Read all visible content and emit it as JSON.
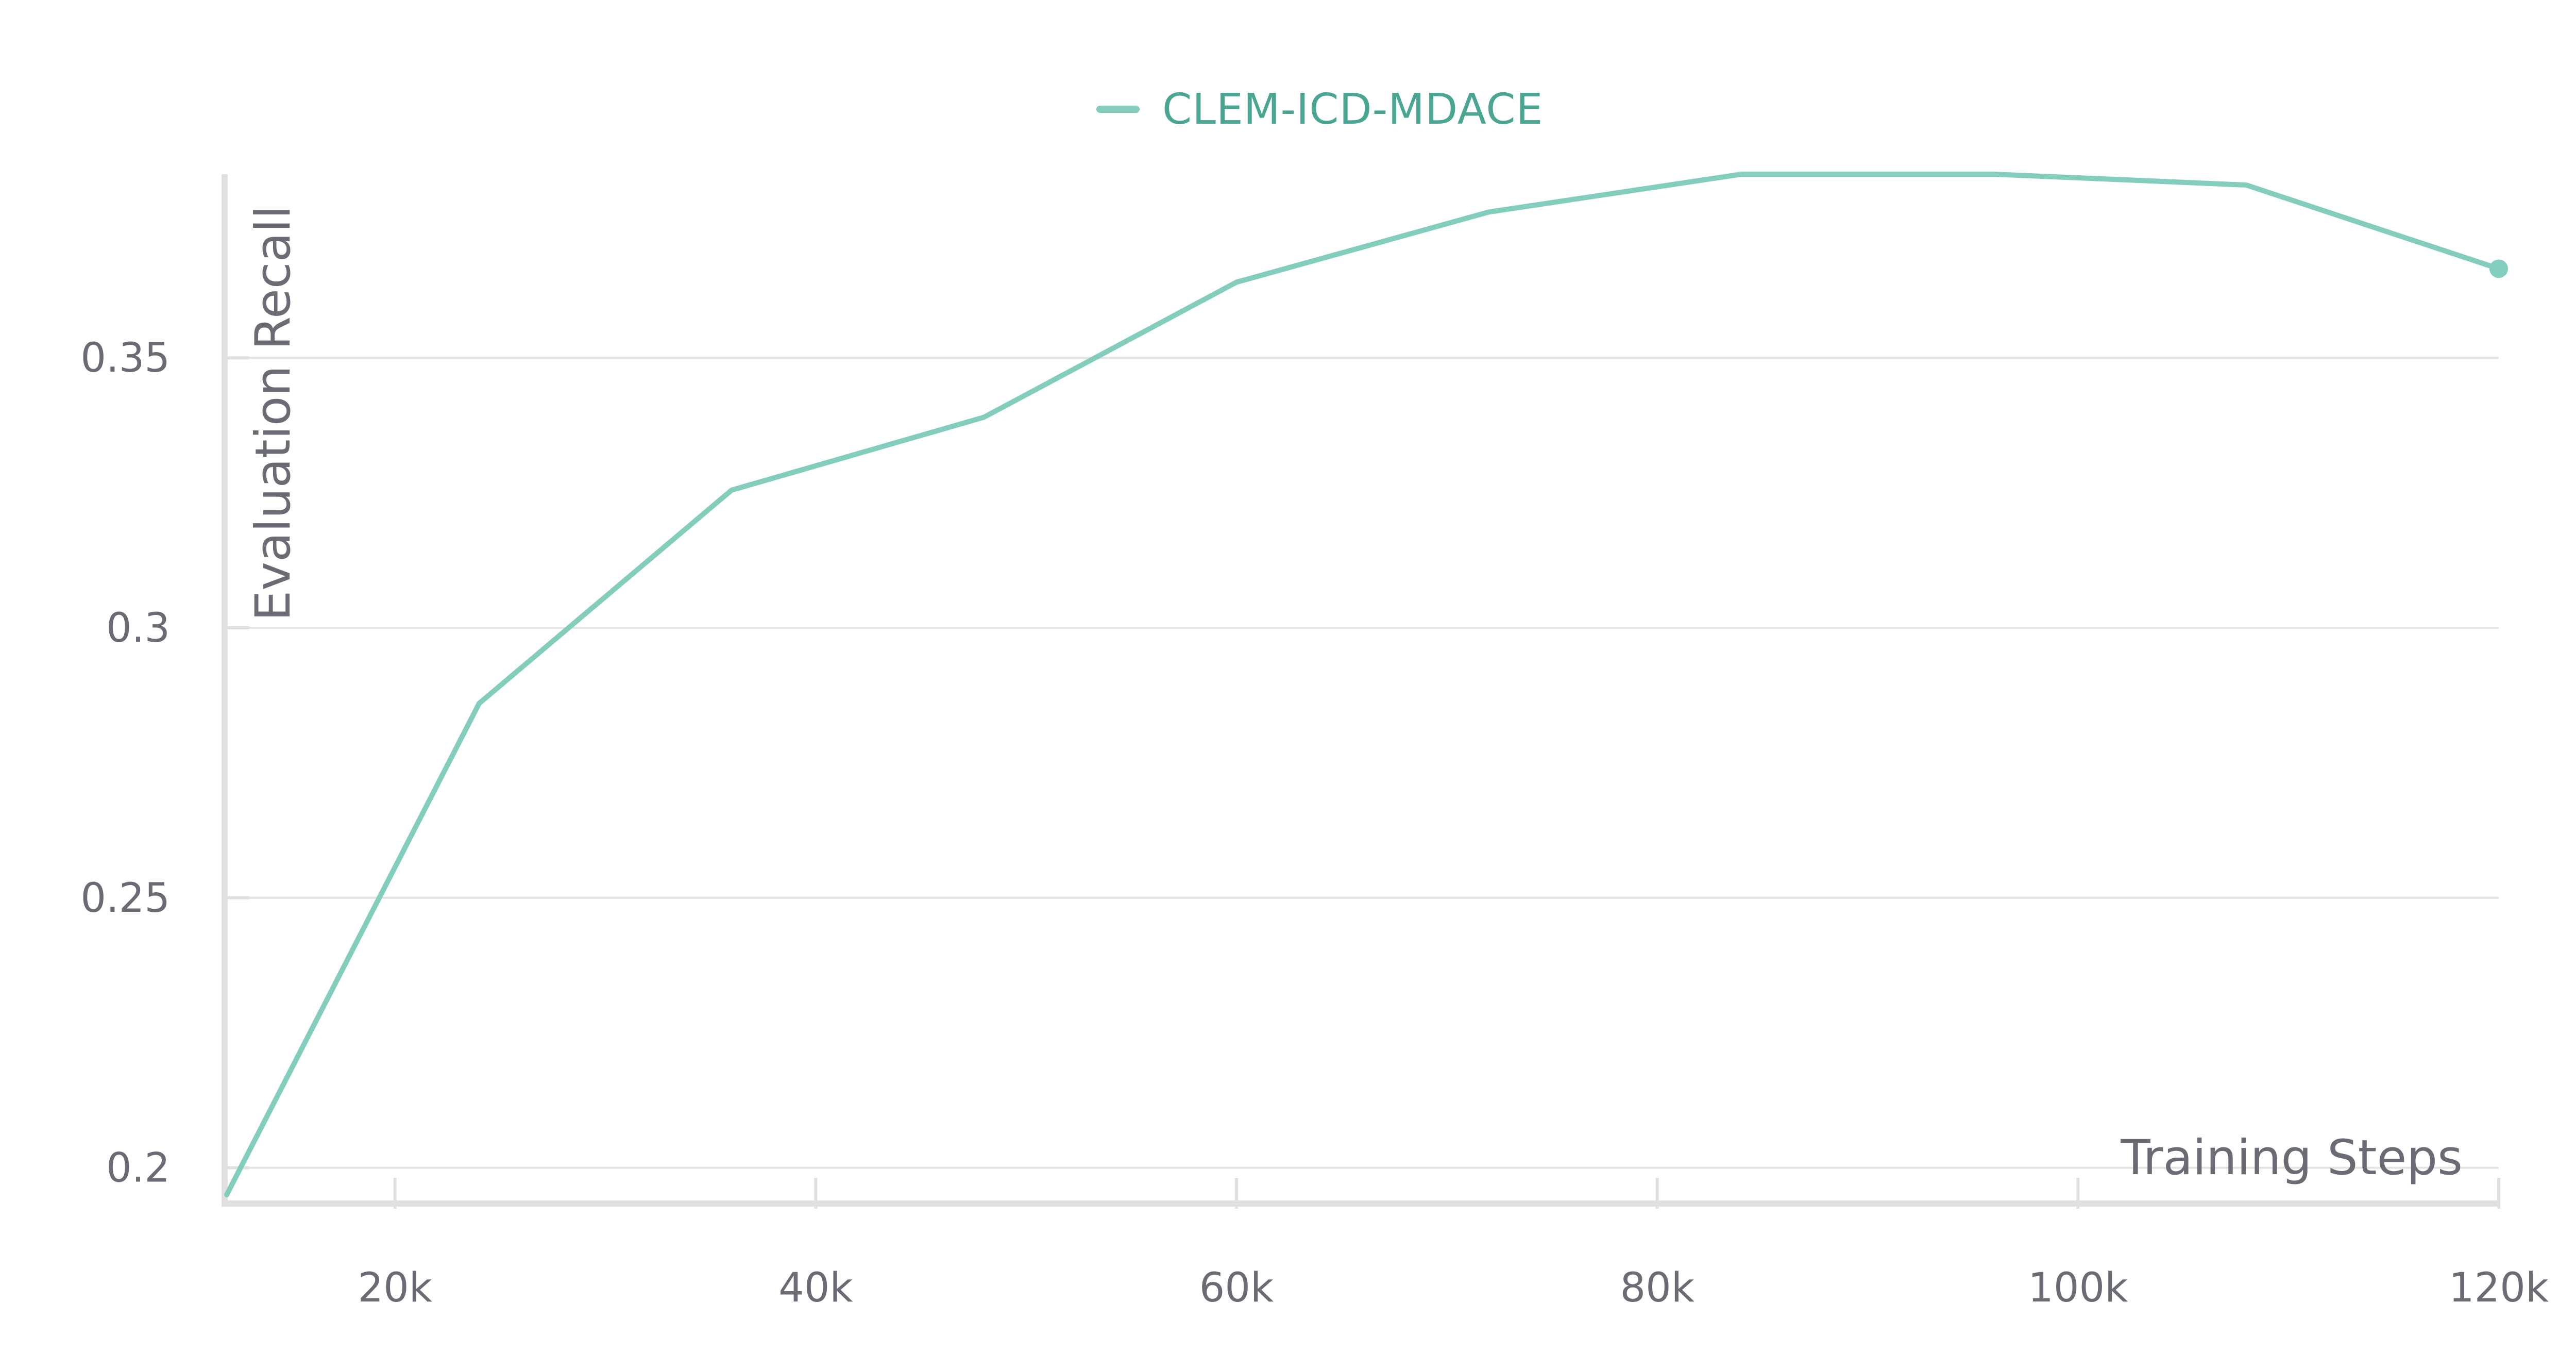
{
  "chart_data": {
    "type": "line",
    "title": "",
    "xlabel": "Training Steps",
    "ylabel": "Evaluation Recall",
    "xlim": [
      12000,
      120000
    ],
    "ylim": [
      0.195,
      0.384
    ],
    "x_ticks": [
      20000,
      40000,
      60000,
      80000,
      100000,
      120000
    ],
    "x_tick_labels": [
      "20k",
      "40k",
      "60k",
      "80k",
      "100k",
      "120k"
    ],
    "y_ticks": [
      0.2,
      0.25,
      0.3,
      0.35
    ],
    "y_tick_labels": [
      "0.2",
      "0.25",
      "0.3",
      "0.35"
    ],
    "grid": "horizontal",
    "legend_position": "top-center",
    "series": [
      {
        "name": "CLEM-ICD-MDACE",
        "color": "#82cdbb",
        "x": [
          12000,
          24000,
          36000,
          48000,
          60000,
          72000,
          84000,
          96000,
          108000,
          120000
        ],
        "y": [
          0.195,
          0.286,
          0.3255,
          0.339,
          0.364,
          0.377,
          0.384,
          0.384,
          0.382,
          0.3665
        ]
      }
    ]
  }
}
